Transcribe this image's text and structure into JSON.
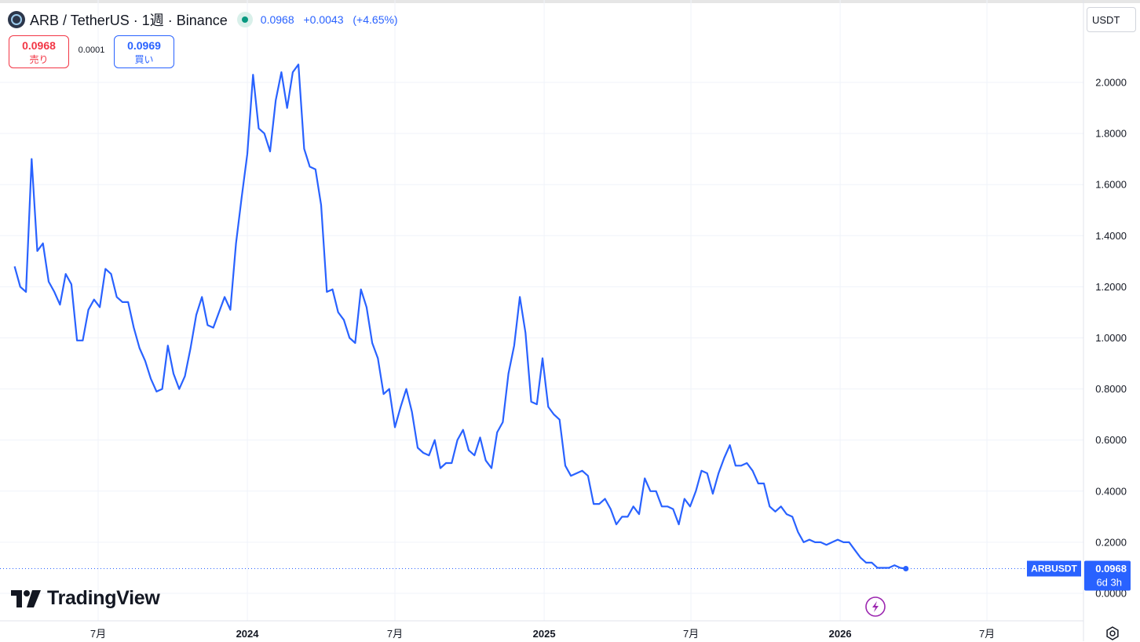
{
  "header": {
    "symbol_title": "ARB / TetherUS · 1週 · Binance",
    "last_price": "0.0968",
    "change": "+0.0043",
    "change_pct": "(+4.65%)"
  },
  "trade_panel": {
    "sell_price": "0.0968",
    "sell_label": "売り",
    "spread": "0.0001",
    "buy_price": "0.0969",
    "buy_label": "買い"
  },
  "currency_selector": "USDT",
  "price_tag": {
    "ticker": "ARBUSDT",
    "price": "0.0968",
    "countdown": "6d 3h"
  },
  "brand": "TradingView",
  "icons": {
    "coin": "arbitrum-coin-icon",
    "market_status": "market-open-dot-icon",
    "logo": "tradingview-logo-icon",
    "lightning": "lightning-icon",
    "settings": "gear-icon"
  },
  "colors": {
    "line": "#2962ff",
    "sell": "#f23645",
    "buy": "#2962ff",
    "market_open": "#089981",
    "lightning": "#9c27b0"
  },
  "chart_data": {
    "type": "line",
    "title": "ARB / TetherUS · 1週 · Binance",
    "xlabel": "",
    "ylabel": "",
    "ylim": [
      0,
      2.1
    ],
    "grid": true,
    "y_ticks": [
      "0.0000",
      "0.2000",
      "0.4000",
      "0.6000",
      "0.8000",
      "1.0000",
      "1.2000",
      "1.4000",
      "1.6000",
      "1.8000",
      "2.0000"
    ],
    "y_tick_values": [
      0,
      0.2,
      0.4,
      0.6,
      0.8,
      1.0,
      1.2,
      1.4,
      1.6,
      1.8,
      2.0
    ],
    "x_ticks": [
      {
        "label": "7月",
        "date": "2023-07-01",
        "bold": false
      },
      {
        "label": "2024",
        "date": "2024-01-01",
        "bold": true
      },
      {
        "label": "7月",
        "date": "2024-07-01",
        "bold": false
      },
      {
        "label": "2025",
        "date": "2025-01-01",
        "bold": true
      },
      {
        "label": "7月",
        "date": "2025-07-01",
        "bold": false
      },
      {
        "label": "2026",
        "date": "2026-01-01",
        "bold": true
      },
      {
        "label": "7月",
        "date": "2026-07-01",
        "bold": false
      }
    ],
    "x_domain": [
      "2023-03-02",
      "2026-10-28"
    ],
    "series": [
      {
        "values": [
          [
            "2023-03-20",
            1.28
          ],
          [
            "2023-03-27",
            1.2
          ],
          [
            "2023-04-03",
            1.18
          ],
          [
            "2023-04-10",
            1.7
          ],
          [
            "2023-04-17",
            1.34
          ],
          [
            "2023-04-24",
            1.37
          ],
          [
            "2023-05-01",
            1.22
          ],
          [
            "2023-05-08",
            1.18
          ],
          [
            "2023-05-15",
            1.13
          ],
          [
            "2023-05-22",
            1.25
          ],
          [
            "2023-05-29",
            1.21
          ],
          [
            "2023-06-05",
            0.99
          ],
          [
            "2023-06-12",
            0.99
          ],
          [
            "2023-06-19",
            1.11
          ],
          [
            "2023-06-26",
            1.15
          ],
          [
            "2023-07-03",
            1.12
          ],
          [
            "2023-07-10",
            1.27
          ],
          [
            "2023-07-17",
            1.25
          ],
          [
            "2023-07-24",
            1.16
          ],
          [
            "2023-07-31",
            1.14
          ],
          [
            "2023-08-07",
            1.14
          ],
          [
            "2023-08-14",
            1.04
          ],
          [
            "2023-08-21",
            0.96
          ],
          [
            "2023-08-28",
            0.91
          ],
          [
            "2023-09-04",
            0.84
          ],
          [
            "2023-09-11",
            0.79
          ],
          [
            "2023-09-18",
            0.8
          ],
          [
            "2023-09-25",
            0.97
          ],
          [
            "2023-10-02",
            0.86
          ],
          [
            "2023-10-09",
            0.8
          ],
          [
            "2023-10-16",
            0.85
          ],
          [
            "2023-10-23",
            0.96
          ],
          [
            "2023-10-30",
            1.09
          ],
          [
            "2023-11-06",
            1.16
          ],
          [
            "2023-11-13",
            1.05
          ],
          [
            "2023-11-20",
            1.04
          ],
          [
            "2023-11-27",
            1.1
          ],
          [
            "2023-12-04",
            1.16
          ],
          [
            "2023-12-11",
            1.11
          ],
          [
            "2023-12-18",
            1.37
          ],
          [
            "2023-12-25",
            1.55
          ],
          [
            "2024-01-01",
            1.72
          ],
          [
            "2024-01-08",
            2.03
          ],
          [
            "2024-01-15",
            1.82
          ],
          [
            "2024-01-22",
            1.8
          ],
          [
            "2024-01-29",
            1.73
          ],
          [
            "2024-02-05",
            1.93
          ],
          [
            "2024-02-12",
            2.04
          ],
          [
            "2024-02-19",
            1.9
          ],
          [
            "2024-02-26",
            2.04
          ],
          [
            "2024-03-04",
            2.07
          ],
          [
            "2024-03-11",
            1.74
          ],
          [
            "2024-03-18",
            1.67
          ],
          [
            "2024-03-25",
            1.66
          ],
          [
            "2024-04-01",
            1.52
          ],
          [
            "2024-04-08",
            1.18
          ],
          [
            "2024-04-15",
            1.19
          ],
          [
            "2024-04-22",
            1.1
          ],
          [
            "2024-04-29",
            1.07
          ],
          [
            "2024-05-06",
            1.0
          ],
          [
            "2024-05-13",
            0.98
          ],
          [
            "2024-05-20",
            1.19
          ],
          [
            "2024-05-27",
            1.12
          ],
          [
            "2024-06-03",
            0.98
          ],
          [
            "2024-06-10",
            0.92
          ],
          [
            "2024-06-17",
            0.78
          ],
          [
            "2024-06-24",
            0.8
          ],
          [
            "2024-07-01",
            0.65
          ],
          [
            "2024-07-08",
            0.73
          ],
          [
            "2024-07-15",
            0.8
          ],
          [
            "2024-07-22",
            0.71
          ],
          [
            "2024-07-29",
            0.57
          ],
          [
            "2024-08-05",
            0.55
          ],
          [
            "2024-08-12",
            0.54
          ],
          [
            "2024-08-19",
            0.6
          ],
          [
            "2024-08-26",
            0.49
          ],
          [
            "2024-09-02",
            0.51
          ],
          [
            "2024-09-09",
            0.51
          ],
          [
            "2024-09-16",
            0.6
          ],
          [
            "2024-09-23",
            0.64
          ],
          [
            "2024-09-30",
            0.56
          ],
          [
            "2024-10-07",
            0.54
          ],
          [
            "2024-10-14",
            0.61
          ],
          [
            "2024-10-21",
            0.52
          ],
          [
            "2024-10-28",
            0.49
          ],
          [
            "2024-11-04",
            0.63
          ],
          [
            "2024-11-11",
            0.67
          ],
          [
            "2024-11-18",
            0.86
          ],
          [
            "2024-11-25",
            0.97
          ],
          [
            "2024-12-02",
            1.16
          ],
          [
            "2024-12-09",
            1.02
          ],
          [
            "2024-12-16",
            0.75
          ],
          [
            "2024-12-23",
            0.74
          ],
          [
            "2024-12-30",
            0.92
          ],
          [
            "2025-01-06",
            0.73
          ],
          [
            "2025-01-13",
            0.7
          ],
          [
            "2025-01-20",
            0.68
          ],
          [
            "2025-01-27",
            0.5
          ],
          [
            "2025-02-03",
            0.46
          ],
          [
            "2025-02-10",
            0.47
          ],
          [
            "2025-02-17",
            0.48
          ],
          [
            "2025-02-24",
            0.46
          ],
          [
            "2025-03-03",
            0.35
          ],
          [
            "2025-03-10",
            0.35
          ],
          [
            "2025-03-17",
            0.37
          ],
          [
            "2025-03-24",
            0.33
          ],
          [
            "2025-03-31",
            0.27
          ],
          [
            "2025-04-07",
            0.3
          ],
          [
            "2025-04-14",
            0.3
          ],
          [
            "2025-04-21",
            0.34
          ],
          [
            "2025-04-28",
            0.31
          ],
          [
            "2025-05-05",
            0.45
          ],
          [
            "2025-05-12",
            0.4
          ],
          [
            "2025-05-19",
            0.4
          ],
          [
            "2025-05-26",
            0.34
          ],
          [
            "2025-06-02",
            0.34
          ],
          [
            "2025-06-09",
            0.33
          ],
          [
            "2025-06-16",
            0.27
          ],
          [
            "2025-06-23",
            0.37
          ],
          [
            "2025-06-30",
            0.34
          ],
          [
            "2025-07-07",
            0.4
          ],
          [
            "2025-07-14",
            0.48
          ],
          [
            "2025-07-21",
            0.47
          ],
          [
            "2025-07-28",
            0.39
          ],
          [
            "2025-08-04",
            0.47
          ],
          [
            "2025-08-11",
            0.53
          ],
          [
            "2025-08-18",
            0.58
          ],
          [
            "2025-08-25",
            0.5
          ],
          [
            "2025-09-01",
            0.5
          ],
          [
            "2025-09-08",
            0.51
          ],
          [
            "2025-09-15",
            0.48
          ],
          [
            "2025-09-22",
            0.43
          ],
          [
            "2025-09-29",
            0.43
          ],
          [
            "2025-10-06",
            0.34
          ],
          [
            "2025-10-13",
            0.32
          ],
          [
            "2025-10-20",
            0.34
          ],
          [
            "2025-10-27",
            0.31
          ],
          [
            "2025-11-03",
            0.3
          ],
          [
            "2025-11-10",
            0.24
          ],
          [
            "2025-11-17",
            0.2
          ],
          [
            "2025-11-24",
            0.21
          ],
          [
            "2025-12-01",
            0.2
          ],
          [
            "2025-12-08",
            0.2
          ],
          [
            "2025-12-15",
            0.19
          ],
          [
            "2025-12-22",
            0.2
          ],
          [
            "2025-12-29",
            0.21
          ],
          [
            "2026-01-05",
            0.2
          ],
          [
            "2026-01-12",
            0.2
          ],
          [
            "2026-01-19",
            0.17
          ],
          [
            "2026-01-26",
            0.14
          ],
          [
            "2026-02-02",
            0.12
          ],
          [
            "2026-02-09",
            0.12
          ],
          [
            "2026-02-16",
            0.1
          ],
          [
            "2026-02-23",
            0.1
          ],
          [
            "2026-03-02",
            0.1
          ],
          [
            "2026-03-09",
            0.11
          ],
          [
            "2026-03-16",
            0.1
          ],
          [
            "2026-03-23",
            0.0968
          ]
        ]
      }
    ]
  }
}
